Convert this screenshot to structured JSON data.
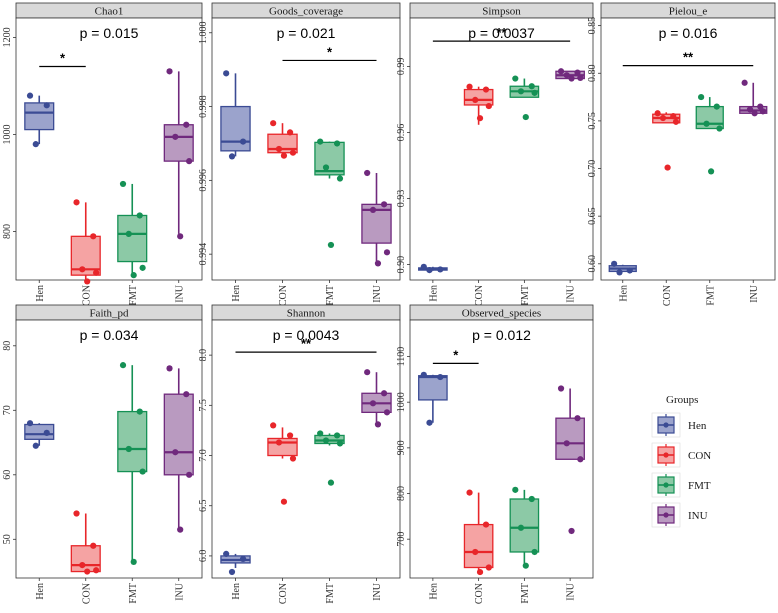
{
  "groups": [
    "Hen",
    "CON",
    "FMT",
    "INU"
  ],
  "group_colors": {
    "Hen": {
      "line": "#3b4b94",
      "fill": "#9ba3cc"
    },
    "CON": {
      "line": "#e8262a",
      "fill": "#f5a3a3"
    },
    "FMT": {
      "line": "#159155",
      "fill": "#8cc9a6"
    },
    "INU": {
      "line": "#70297d",
      "fill": "#b99ac0"
    }
  },
  "legend": {
    "title": "Groups",
    "items": [
      "Hen",
      "CON",
      "FMT",
      "INU"
    ]
  },
  "chart_data": [
    {
      "type": "box",
      "title": "Chao1",
      "pvalue": "p = 0.015",
      "ylim": [
        700,
        1240
      ],
      "yticks": [
        800,
        1000,
        1200
      ],
      "ytick_labels": [
        "800",
        "1000",
        "1200"
      ],
      "boxes": {
        "Hen": {
          "q1": 1010,
          "median": 1045,
          "q3": 1065,
          "min": 980,
          "max": 1080
        },
        "CON": {
          "q1": 710,
          "median": 722,
          "q3": 790,
          "min": 697,
          "max": 860
        },
        "FMT": {
          "q1": 738,
          "median": 795,
          "q3": 833,
          "min": 710,
          "max": 898
        },
        "INU": {
          "q1": 945,
          "median": 995,
          "q3": 1020,
          "min": 795,
          "max": 1130
        }
      },
      "points": {
        "Hen": [
          1080,
          1060,
          980
        ],
        "CON": [
          860,
          790,
          722,
          715,
          697
        ],
        "FMT": [
          898,
          833,
          795,
          725,
          710
        ],
        "INU": [
          1130,
          1020,
          995,
          945,
          790
        ]
      },
      "significance": [
        {
          "from": "Hen",
          "to": "CON",
          "label": "*",
          "y": 1140
        }
      ]
    },
    {
      "type": "box",
      "title": "Goods_coverage",
      "pvalue": "p = 0.021",
      "ylim": [
        0.9933,
        1.0004
      ],
      "yticks": [
        0.994,
        0.996,
        0.998,
        1.0
      ],
      "ytick_labels": [
        "0.994",
        "0.996",
        "0.998",
        "1.000"
      ],
      "boxes": {
        "Hen": {
          "q1": 0.9968,
          "median": 0.99705,
          "q3": 0.998,
          "min": 0.99665,
          "max": 0.9989
        },
        "CON": {
          "q1": 0.99675,
          "median": 0.99685,
          "q3": 0.99725,
          "min": 0.99667,
          "max": 0.99755
        },
        "FMT": {
          "q1": 0.99615,
          "median": 0.99625,
          "q3": 0.99703,
          "min": 0.99605,
          "max": 0.99705
        },
        "INU": {
          "q1": 0.9943,
          "median": 0.9952,
          "q3": 0.99535,
          "min": 0.99375,
          "max": 0.9962
        }
      },
      "points": {
        "Hen": [
          0.9989,
          0.99705,
          0.99665
        ],
        "CON": [
          0.99755,
          0.9973,
          0.99685,
          0.99675,
          0.99667
        ],
        "FMT": [
          0.99705,
          0.997,
          0.99635,
          0.99605,
          0.99425
        ],
        "INU": [
          0.9962,
          0.99535,
          0.9952,
          0.99405,
          0.99375
        ]
      },
      "significance": [
        {
          "from": "CON",
          "to": "INU",
          "label": "*",
          "y": 0.99925
        }
      ]
    },
    {
      "type": "box",
      "title": "Simpson",
      "pvalue": "p = 0.0037",
      "ylim": [
        0.893,
        1.012
      ],
      "yticks": [
        0.9,
        0.93,
        0.96,
        0.99
      ],
      "ytick_labels": [
        "0.90",
        "0.93",
        "0.96",
        "0.99"
      ],
      "boxes": {
        "Hen": {
          "q1": 0.8975,
          "median": 0.8978,
          "q3": 0.8985,
          "min": 0.8972,
          "max": 0.899
        },
        "CON": {
          "q1": 0.9725,
          "median": 0.9748,
          "q3": 0.9795,
          "min": 0.9635,
          "max": 0.9808
        },
        "FMT": {
          "q1": 0.976,
          "median": 0.9787,
          "q3": 0.981,
          "min": 0.976,
          "max": 0.9845
        },
        "INU": {
          "q1": 0.9845,
          "median": 0.986,
          "q3": 0.9878,
          "min": 0.9845,
          "max": 0.9878
        }
      },
      "points": {
        "Hen": [
          0.899,
          0.8978,
          0.8975
        ],
        "CON": [
          0.9808,
          0.9795,
          0.9748,
          0.972,
          0.9665
        ],
        "FMT": [
          0.9845,
          0.981,
          0.9787,
          0.978,
          0.967
        ],
        "INU": [
          0.9878,
          0.9872,
          0.986,
          0.9848,
          0.9845
        ]
      },
      "significance": [
        {
          "from": "Hen",
          "to": "INU",
          "label": "**",
          "y": 1.0015
        }
      ]
    },
    {
      "type": "box",
      "title": "Pielou_e",
      "pvalue": "p = 0.016",
      "ylim": [
        0.583,
        0.858
      ],
      "yticks": [
        0.6,
        0.65,
        0.7,
        0.75,
        0.8,
        0.85
      ],
      "ytick_labels": [
        "0.60",
        "0.65",
        "0.70",
        "0.75",
        "0.80",
        "0.85"
      ],
      "boxes": {
        "Hen": {
          "q1": 0.592,
          "median": 0.595,
          "q3": 0.598,
          "min": 0.592,
          "max": 0.599
        },
        "CON": {
          "q1": 0.748,
          "median": 0.753,
          "q3": 0.757,
          "min": 0.748,
          "max": 0.759
        },
        "FMT": {
          "q1": 0.742,
          "median": 0.747,
          "q3": 0.765,
          "min": 0.742,
          "max": 0.775
        },
        "INU": {
          "q1": 0.758,
          "median": 0.761,
          "q3": 0.765,
          "min": 0.758,
          "max": 0.79
        }
      },
      "points": {
        "Hen": [
          0.6,
          0.593,
          0.591
        ],
        "CON": [
          0.758,
          0.755,
          0.753,
          0.749,
          0.701
        ],
        "FMT": [
          0.775,
          0.765,
          0.747,
          0.742,
          0.697
        ],
        "INU": [
          0.79,
          0.765,
          0.762,
          0.76,
          0.758
        ]
      },
      "significance": [
        {
          "from": "Hen",
          "to": "INU",
          "label": "**",
          "y": 0.808
        }
      ]
    },
    {
      "type": "box",
      "title": "Faith_pd",
      "pvalue": "p = 0.034",
      "ylim": [
        44,
        84
      ],
      "yticks": [
        50,
        60,
        70,
        80
      ],
      "ytick_labels": [
        "50",
        "60",
        "70",
        "80"
      ],
      "boxes": {
        "Hen": {
          "q1": 65.5,
          "median": 66.3,
          "q3": 67.8,
          "min": 64.5,
          "max": 68
        },
        "CON": {
          "q1": 45,
          "median": 46,
          "q3": 49,
          "min": 45,
          "max": 54
        },
        "FMT": {
          "q1": 60.5,
          "median": 64,
          "q3": 69.8,
          "min": 46.5,
          "max": 77
        },
        "INU": {
          "q1": 60,
          "median": 63.5,
          "q3": 72.5,
          "min": 51.5,
          "max": 76.5
        }
      },
      "points": {
        "Hen": [
          68,
          66.5,
          64.5
        ],
        "CON": [
          54,
          49,
          46,
          45.2,
          45
        ],
        "FMT": [
          77,
          69.8,
          64,
          60.5,
          46.5
        ],
        "INU": [
          76.5,
          72.5,
          63.5,
          60,
          51.5
        ]
      },
      "significance": []
    },
    {
      "type": "box",
      "title": "Shannon",
      "pvalue": "p = 0.0043",
      "ylim": [
        5.78,
        8.35
      ],
      "yticks": [
        6.0,
        6.5,
        7.0,
        7.5,
        8.0
      ],
      "ytick_labels": [
        "6.0",
        "6.5",
        "7.0",
        "7.5",
        "8.0"
      ],
      "boxes": {
        "Hen": {
          "q1": 5.93,
          "median": 5.96,
          "q3": 6.0,
          "min": 5.88,
          "max": 6.02
        },
        "CON": {
          "q1": 7.0,
          "median": 7.13,
          "q3": 7.17,
          "min": 6.97,
          "max": 7.28
        },
        "FMT": {
          "q1": 7.12,
          "median": 7.15,
          "q3": 7.2,
          "min": 7.1,
          "max": 7.22
        },
        "INU": {
          "q1": 7.43,
          "median": 7.52,
          "q3": 7.62,
          "min": 7.31,
          "max": 7.83
        }
      },
      "points": {
        "Hen": [
          6.02,
          5.97,
          5.84
        ],
        "CON": [
          7.3,
          7.2,
          7.13,
          6.97,
          6.54
        ],
        "FMT": [
          7.22,
          7.2,
          7.15,
          7.12,
          6.73
        ],
        "INU": [
          7.83,
          7.62,
          7.52,
          7.43,
          7.31
        ]
      },
      "significance": [
        {
          "from": "Hen",
          "to": "INU",
          "label": "**",
          "y": 8.03
        }
      ]
    },
    {
      "type": "box",
      "title": "Observed_species",
      "pvalue": "p = 0.012",
      "ylim": [
        615,
        1180
      ],
      "yticks": [
        700,
        800,
        900,
        1000,
        1100
      ],
      "ytick_labels": [
        "700",
        "800",
        "900",
        "1000",
        "1100"
      ],
      "boxes": {
        "Hen": {
          "q1": 1005,
          "median": 1055,
          "q3": 1058,
          "min": 955,
          "max": 1060
        },
        "CON": {
          "q1": 638,
          "median": 672,
          "q3": 732,
          "min": 628,
          "max": 802
        },
        "FMT": {
          "q1": 672,
          "median": 725,
          "q3": 788,
          "min": 642,
          "max": 808
        },
        "INU": {
          "q1": 875,
          "median": 910,
          "q3": 965,
          "min": 875,
          "max": 1030
        }
      },
      "points": {
        "Hen": [
          1060,
          1055,
          955
        ],
        "CON": [
          802,
          732,
          672,
          638,
          628
        ],
        "FMT": [
          808,
          788,
          725,
          672,
          642
        ],
        "INU": [
          1030,
          965,
          910,
          875,
          718
        ]
      },
      "significance": [
        {
          "from": "Hen",
          "to": "CON",
          "label": "*",
          "y": 1085
        }
      ]
    }
  ]
}
